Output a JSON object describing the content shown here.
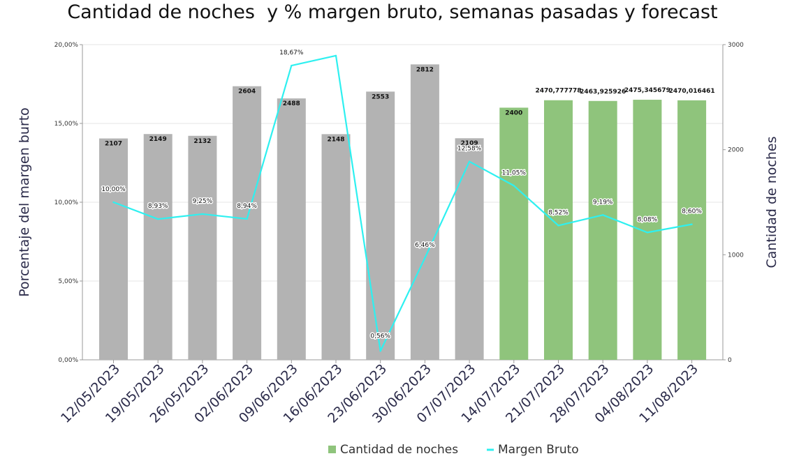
{
  "chart_data": {
    "type": "bar",
    "title": "Cantidad de noches  y % margen bruto, semanas pasadas y forecast",
    "categories": [
      "12/05/2023",
      "19/05/2023",
      "26/05/2023",
      "02/06/2023",
      "09/06/2023",
      "16/06/2023",
      "23/06/2023",
      "30/06/2023",
      "07/07/2023",
      "14/07/2023",
      "21/07/2023",
      "28/07/2023",
      "04/08/2023",
      "11/08/2023"
    ],
    "y_left": {
      "label": "Porcentaje del margen burto",
      "ylim": [
        0,
        20
      ],
      "ticks": [
        0,
        5,
        10,
        15,
        20
      ],
      "tick_labels": [
        "0,00%",
        "5,00%",
        "10,00%",
        "15,00%",
        "20,00%"
      ]
    },
    "y_right": {
      "label": "Cantidad de noches",
      "ylim": [
        0,
        3000
      ],
      "ticks": [
        0,
        1000,
        2000,
        3000
      ],
      "tick_labels": [
        "0",
        "1000",
        "2000",
        "3000"
      ]
    },
    "grid": true,
    "series": [
      {
        "name": "Cantidad de noches",
        "type": "bar",
        "axis": "right",
        "values": [
          2107,
          2149,
          2132,
          2604,
          2488,
          2148,
          2553,
          2812,
          2109,
          2400,
          2470.777778,
          2463.925926,
          2475.345679,
          2470.016461
        ],
        "labels": [
          "2107",
          "2149",
          "2132",
          "2604",
          "2488",
          "2148",
          "2553",
          "2812",
          "2109",
          "2400",
          "2470,777778",
          "2463,925926",
          "2475,345679",
          "2470,016461"
        ],
        "colors": [
          "#b3b3b3",
          "#b3b3b3",
          "#b3b3b3",
          "#b3b3b3",
          "#b3b3b3",
          "#b3b3b3",
          "#b3b3b3",
          "#b3b3b3",
          "#b3b3b3",
          "#8fc47c",
          "#8fc47c",
          "#8fc47c",
          "#8fc47c",
          "#8fc47c"
        ],
        "legend_color": "#8fc47c"
      },
      {
        "name": "Margen Bruto",
        "type": "line",
        "axis": "left",
        "color": "#2ef0f0",
        "values": [
          10.0,
          8.93,
          9.25,
          8.94,
          18.67,
          19.3,
          0.56,
          6.46,
          12.58,
          11.05,
          8.52,
          9.19,
          8.08,
          8.6
        ],
        "labels": [
          "10,00%",
          "8,93%",
          "9,25%",
          "8,94%",
          "18,67%",
          "",
          "0,56%",
          "6,46%",
          "12,58%",
          "11,05%",
          "8,52%",
          "9,19%",
          "8,08%",
          "8,60%"
        ]
      }
    ],
    "legend": {
      "placement": "bottom-center"
    }
  }
}
